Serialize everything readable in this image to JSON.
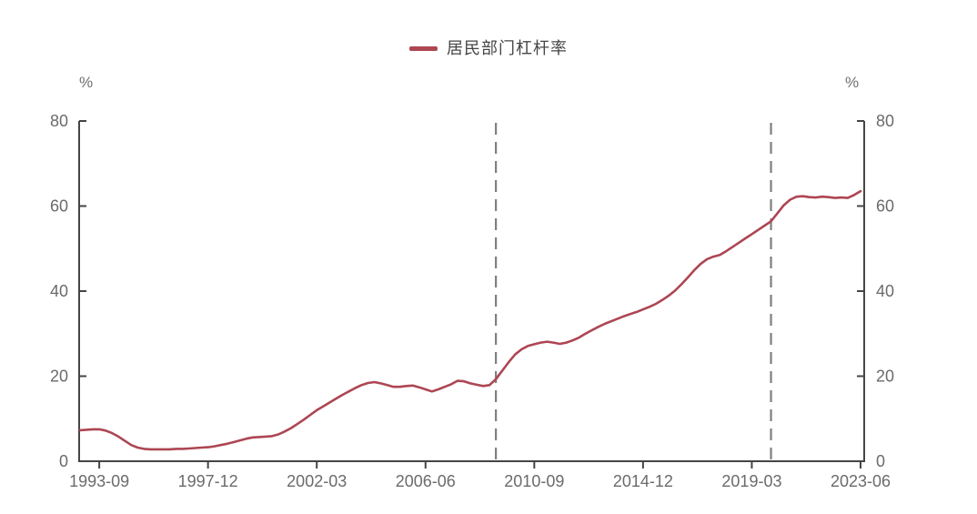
{
  "page": {
    "background": "#ffffff"
  },
  "legend": {
    "items": [
      {
        "label": "居民部门杠杆率",
        "color": "#ad4653"
      }
    ]
  },
  "chart_data": {
    "type": "line",
    "title": "",
    "y_unit_left": "%",
    "y_unit_right": "%",
    "ylim": [
      0,
      80
    ],
    "y_ticks": [
      0,
      20,
      40,
      60,
      80
    ],
    "x_tick_labels": [
      "1993-09",
      "1997-12",
      "2002-03",
      "2006-06",
      "2010-09",
      "2014-12",
      "2019-03",
      "2023-06"
    ],
    "x_tick_indices": [
      3,
      20,
      37,
      54,
      71,
      88,
      105,
      122
    ],
    "grid": false,
    "legend_position": "top-center",
    "axis_color": "#454545",
    "tick_label_color": "#6b6b6b",
    "series": [
      {
        "name": "居民部门杠杆率",
        "color": "#ad4653",
        "start": "1992-12",
        "frequency": "quarterly",
        "values": [
          7.3,
          7.4,
          7.5,
          7.5,
          7.2,
          6.6,
          5.8,
          4.8,
          3.8,
          3.2,
          2.9,
          2.8,
          2.8,
          2.8,
          2.8,
          2.9,
          2.9,
          3.0,
          3.1,
          3.2,
          3.3,
          3.5,
          3.8,
          4.1,
          4.5,
          4.9,
          5.3,
          5.6,
          5.7,
          5.8,
          5.9,
          6.3,
          7.0,
          7.8,
          8.8,
          9.8,
          10.9,
          12.0,
          12.9,
          13.8,
          14.7,
          15.6,
          16.4,
          17.2,
          17.9,
          18.4,
          18.6,
          18.3,
          17.9,
          17.5,
          17.5,
          17.7,
          17.8,
          17.4,
          16.9,
          16.4,
          16.9,
          17.5,
          18.1,
          18.9,
          18.8,
          18.3,
          18.0,
          17.7,
          17.9,
          19.3,
          21.3,
          23.3,
          25.1,
          26.3,
          27.1,
          27.5,
          27.9,
          28.1,
          27.9,
          27.6,
          27.9,
          28.4,
          29.1,
          30.0,
          30.8,
          31.6,
          32.3,
          32.9,
          33.5,
          34.1,
          34.6,
          35.1,
          35.7,
          36.3,
          37.0,
          37.9,
          38.9,
          40.1,
          41.6,
          43.2,
          44.9,
          46.4,
          47.5,
          48.1,
          48.5,
          49.4,
          50.4,
          51.4,
          52.4,
          53.4,
          54.4,
          55.4,
          56.4,
          58.3,
          60.2,
          61.5,
          62.2,
          62.3,
          62.1,
          62.0,
          62.2,
          62.1,
          61.9,
          62.0,
          61.9,
          62.6,
          63.5
        ]
      }
    ],
    "reference_lines": [
      {
        "at": "2009-03",
        "index": 65,
        "style": "dashed",
        "color": "#7f7f7f"
      },
      {
        "at": "2019-12",
        "index": 108,
        "style": "dashed",
        "color": "#7f7f7f"
      }
    ]
  }
}
